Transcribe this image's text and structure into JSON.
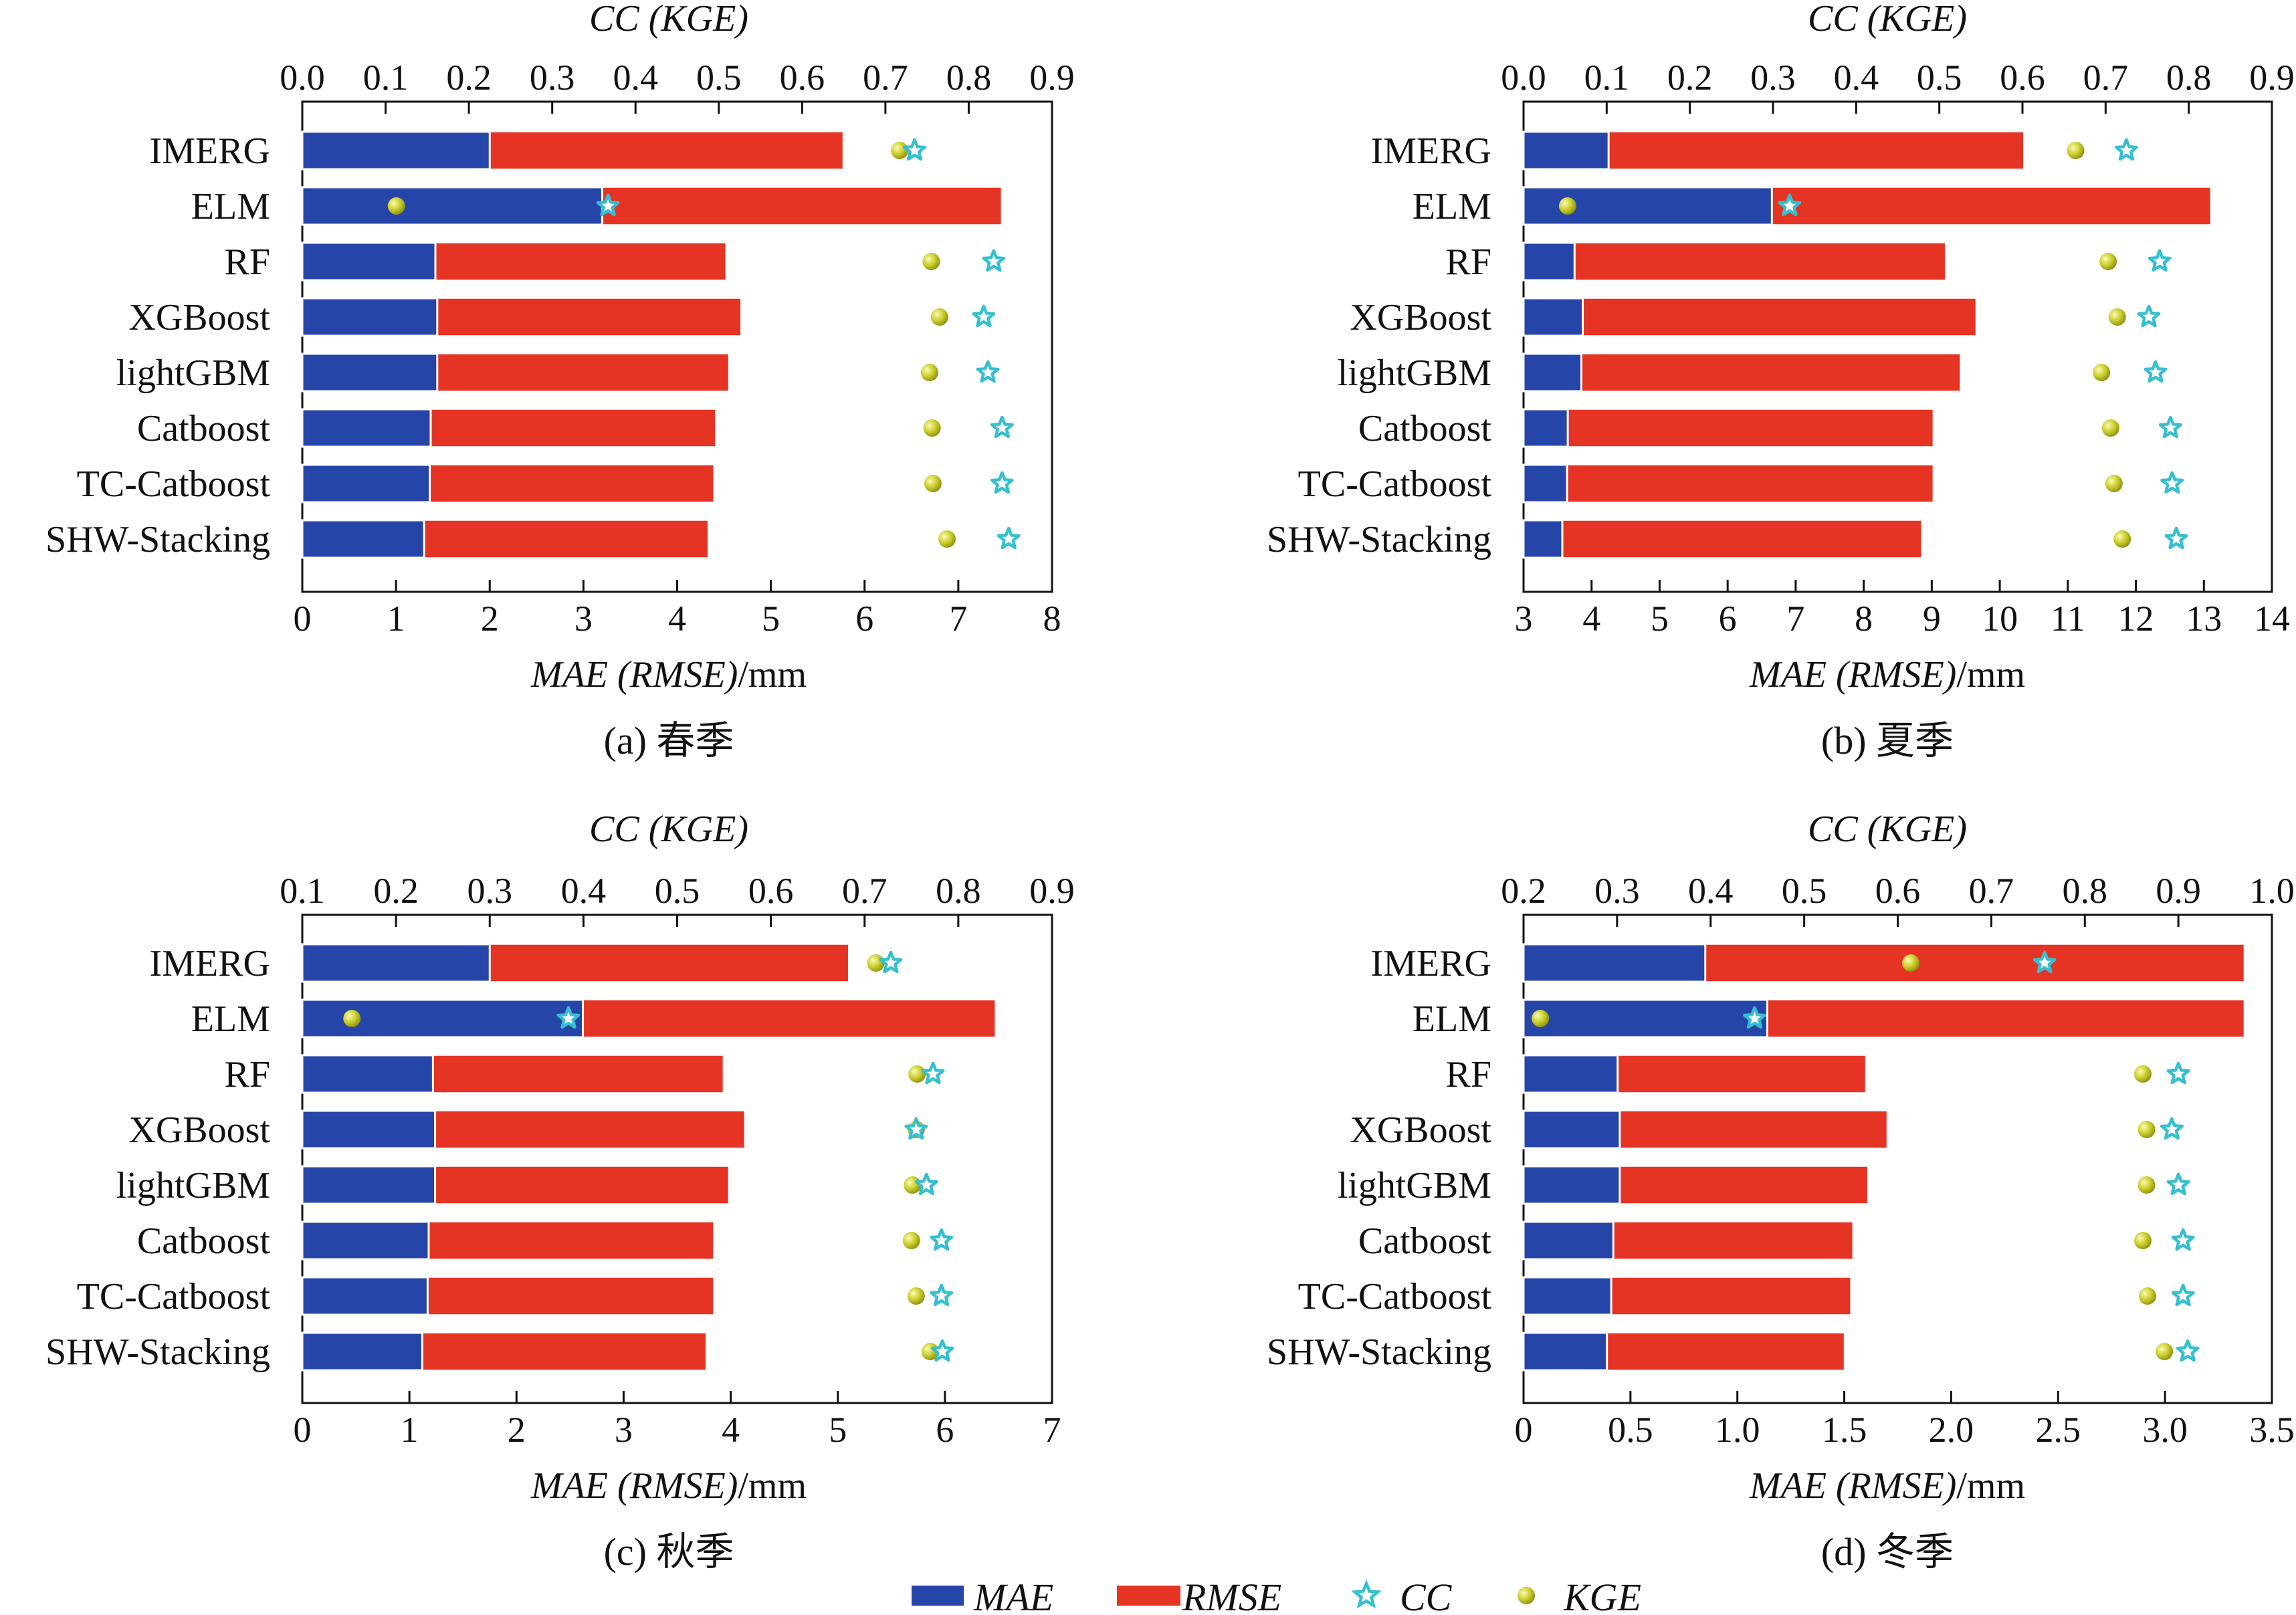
{
  "figure": {
    "panels": [
      {
        "caption": "(a) 春季",
        "top_axis_title": "CC (KGE)",
        "bottom_axis_title": "MAE (RMSE)",
        "bottom_axis_unit": "/mm"
      },
      {
        "caption": "(b) 夏季",
        "top_axis_title": "CC (KGE)",
        "bottom_axis_title": "MAE (RMSE)",
        "bottom_axis_unit": "/mm"
      },
      {
        "caption": "(c) 秋季",
        "top_axis_title": "CC (KGE)",
        "bottom_axis_title": "MAE (RMSE)",
        "bottom_axis_unit": "/mm"
      },
      {
        "caption": "(d) 冬季",
        "top_axis_title": "CC (KGE)",
        "bottom_axis_title": "MAE (RMSE)",
        "bottom_axis_unit": "/mm"
      }
    ],
    "legend": [
      "MAE",
      "RMSE",
      "CC",
      "KGE"
    ]
  },
  "colors": {
    "mae": "#2545a8",
    "rmse": "#e53424",
    "cc": "#35bfd0",
    "kge": "#c9cc2a"
  },
  "chart_data": [
    {
      "type": "bar",
      "title": "(a) 春季",
      "categories": [
        "IMERG",
        "ELM",
        "RF",
        "XGBoost",
        "lightGBM",
        "Catboost",
        "TC-Catboost",
        "SHW-Stacking"
      ],
      "xlabel": "MAE (RMSE)/mm",
      "x2label": "CC (KGE)",
      "xlim": [
        0,
        8
      ],
      "xticks": [
        0,
        1,
        2,
        3,
        4,
        5,
        6,
        7,
        8
      ],
      "x2lim": [
        0.0,
        0.9
      ],
      "x2ticks": [
        "0.0",
        "0.1",
        "0.2",
        "0.3",
        "0.4",
        "0.5",
        "0.6",
        "0.7",
        "0.8",
        "0.9"
      ],
      "series": [
        {
          "name": "MAE",
          "values": [
            2.0,
            3.2,
            1.42,
            1.44,
            1.44,
            1.37,
            1.36,
            1.3
          ]
        },
        {
          "name": "RMSE",
          "values": [
            5.77,
            7.46,
            4.52,
            4.68,
            4.55,
            4.41,
            4.39,
            4.33
          ]
        },
        {
          "name": "CC",
          "values": [
            0.735,
            0.367,
            0.83,
            0.818,
            0.823,
            0.84,
            0.84,
            0.848
          ]
        },
        {
          "name": "KGE",
          "values": [
            0.717,
            0.113,
            0.755,
            0.765,
            0.753,
            0.756,
            0.757,
            0.774
          ]
        }
      ]
    },
    {
      "type": "bar",
      "title": "(b) 夏季",
      "categories": [
        "IMERG",
        "ELM",
        "RF",
        "XGBoost",
        "lightGBM",
        "Catboost",
        "TC-Catboost",
        "SHW-Stacking"
      ],
      "xlabel": "MAE (RMSE)/mm",
      "x2label": "CC (KGE)",
      "xlim": [
        3,
        14
      ],
      "xticks": [
        3,
        4,
        5,
        6,
        7,
        8,
        9,
        10,
        11,
        12,
        13,
        14
      ],
      "x2lim": [
        0.0,
        0.9
      ],
      "x2ticks": [
        "0.0",
        "0.1",
        "0.2",
        "0.3",
        "0.4",
        "0.5",
        "0.6",
        "0.7",
        "0.8",
        "0.9"
      ],
      "series": [
        {
          "name": "MAE",
          "values": [
            4.25,
            6.65,
            3.75,
            3.87,
            3.85,
            3.65,
            3.64,
            3.57
          ]
        },
        {
          "name": "RMSE",
          "values": [
            10.35,
            13.1,
            9.2,
            9.65,
            9.42,
            9.02,
            9.02,
            8.85
          ]
        },
        {
          "name": "CC",
          "values": [
            0.725,
            0.32,
            0.765,
            0.752,
            0.76,
            0.778,
            0.78,
            0.785
          ]
        },
        {
          "name": "KGE",
          "values": [
            0.664,
            0.053,
            0.703,
            0.714,
            0.695,
            0.706,
            0.71,
            0.72
          ]
        }
      ]
    },
    {
      "type": "bar",
      "title": "(c) 秋季",
      "categories": [
        "IMERG",
        "ELM",
        "RF",
        "XGBoost",
        "lightGBM",
        "Catboost",
        "TC-Catboost",
        "SHW-Stacking"
      ],
      "xlabel": "MAE (RMSE)/mm",
      "x2label": "CC (KGE)",
      "xlim": [
        0,
        7
      ],
      "xticks": [
        0,
        1,
        2,
        3,
        4,
        5,
        6,
        7
      ],
      "x2lim": [
        0.1,
        0.9
      ],
      "x2ticks": [
        "0.1",
        "0.2",
        "0.3",
        "0.4",
        "0.5",
        "0.6",
        "0.7",
        "0.8",
        "0.9"
      ],
      "series": [
        {
          "name": "MAE",
          "values": [
            1.75,
            2.62,
            1.22,
            1.24,
            1.24,
            1.18,
            1.17,
            1.12
          ]
        },
        {
          "name": "RMSE",
          "values": [
            5.1,
            6.47,
            3.93,
            4.13,
            3.98,
            3.84,
            3.84,
            3.77
          ]
        },
        {
          "name": "CC",
          "values": [
            0.728,
            0.384,
            0.773,
            0.755,
            0.766,
            0.782,
            0.782,
            0.783
          ]
        },
        {
          "name": "KGE",
          "values": [
            0.712,
            0.153,
            0.756,
            0.755,
            0.751,
            0.75,
            0.755,
            0.77
          ]
        }
      ]
    },
    {
      "type": "bar",
      "title": "(d) 冬季",
      "categories": [
        "IMERG",
        "ELM",
        "RF",
        "XGBoost",
        "lightGBM",
        "Catboost",
        "TC-Catboost",
        "SHW-Stacking"
      ],
      "xlabel": "MAE (RMSE)/mm",
      "x2label": "CC (KGE)",
      "xlim": [
        0,
        3.5
      ],
      "xticks": [
        "0",
        "0.5",
        "1.0",
        "1.5",
        "2.0",
        "2.5",
        "3.0",
        "3.5"
      ],
      "x2lim": [
        0.2,
        1.0
      ],
      "x2ticks": [
        "0.2",
        "0.3",
        "0.4",
        "0.5",
        "0.6",
        "0.7",
        "0.8",
        "0.9",
        "1.0"
      ],
      "series": [
        {
          "name": "MAE",
          "values": [
            0.85,
            1.14,
            0.44,
            0.45,
            0.45,
            0.42,
            0.41,
            0.39
          ]
        },
        {
          "name": "RMSE",
          "values": [
            3.37,
            3.37,
            1.6,
            1.7,
            1.61,
            1.54,
            1.53,
            1.5
          ]
        },
        {
          "name": "CC",
          "values": [
            0.757,
            0.447,
            0.9,
            0.893,
            0.9,
            0.905,
            0.905,
            0.91
          ]
        },
        {
          "name": "KGE",
          "values": [
            0.614,
            0.218,
            0.862,
            0.866,
            0.866,
            0.862,
            0.867,
            0.885
          ]
        }
      ]
    }
  ]
}
